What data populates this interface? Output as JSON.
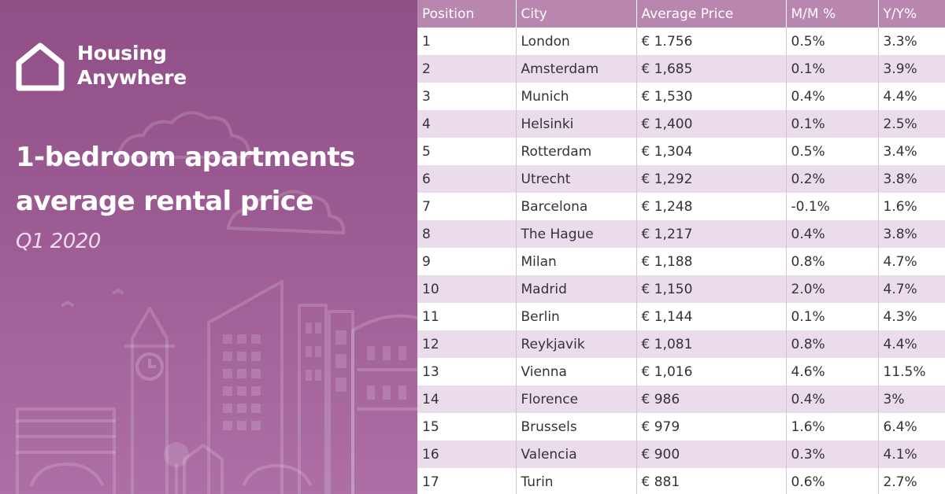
{
  "brand": {
    "name_line1": "Housing",
    "name_line2": "Anywhere"
  },
  "headline": {
    "line1": "1-bedroom apartments",
    "line2": "average rental price",
    "subtitle": "Q1 2020"
  },
  "colors": {
    "left_panel": "#9c5b93",
    "header_row": "#b986b0",
    "stripe_row": "#eadcea"
  },
  "icons": [
    "house-logo-icon",
    "clock-tower-icon"
  ],
  "table": {
    "headers": [
      "Position",
      "City",
      "Average Price",
      "M/M %",
      "Y/Y%"
    ],
    "rows": [
      [
        "1",
        "London",
        "€ 1.756",
        "0.5%",
        "3.3%"
      ],
      [
        "2",
        "Amsterdam",
        "€ 1,685",
        "0.1%",
        "3.9%"
      ],
      [
        "3",
        "Munich",
        "€ 1,530",
        "0.4%",
        "4.4%"
      ],
      [
        "4",
        "Helsinki",
        "€ 1,400",
        "0.1%",
        "2.5%"
      ],
      [
        "5",
        "Rotterdam",
        "€ 1,304",
        "0.5%",
        "3.4%"
      ],
      [
        "6",
        "Utrecht",
        "€ 1,292",
        "0.2%",
        "3.8%"
      ],
      [
        "7",
        "Barcelona",
        "€ 1,248",
        "-0.1%",
        "1.6%"
      ],
      [
        "8",
        "The Hague",
        "€ 1,217",
        "0.4%",
        "3.8%"
      ],
      [
        "9",
        "Milan",
        "€ 1,188",
        "0.8%",
        "4.7%"
      ],
      [
        "10",
        "Madrid",
        "€ 1,150",
        "2.0%",
        "4.7%"
      ],
      [
        "11",
        "Berlin",
        "€ 1,144",
        "0.1%",
        "4.3%"
      ],
      [
        "12",
        "Reykjavik",
        "€ 1,081",
        "0.8%",
        "4.4%"
      ],
      [
        "13",
        "Vienna",
        "€ 1,016",
        "4.6%",
        "11.5%"
      ],
      [
        "14",
        "Florence",
        "€ 986",
        "0.4%",
        "3%"
      ],
      [
        "15",
        "Brussels",
        "€ 979",
        "1.6%",
        "6.4%"
      ],
      [
        "16",
        "Valencia",
        "€ 900",
        "0.3%",
        "4.1%"
      ],
      [
        "17",
        "Turin",
        "€ 881",
        "0.6%",
        "2.7%"
      ]
    ]
  }
}
